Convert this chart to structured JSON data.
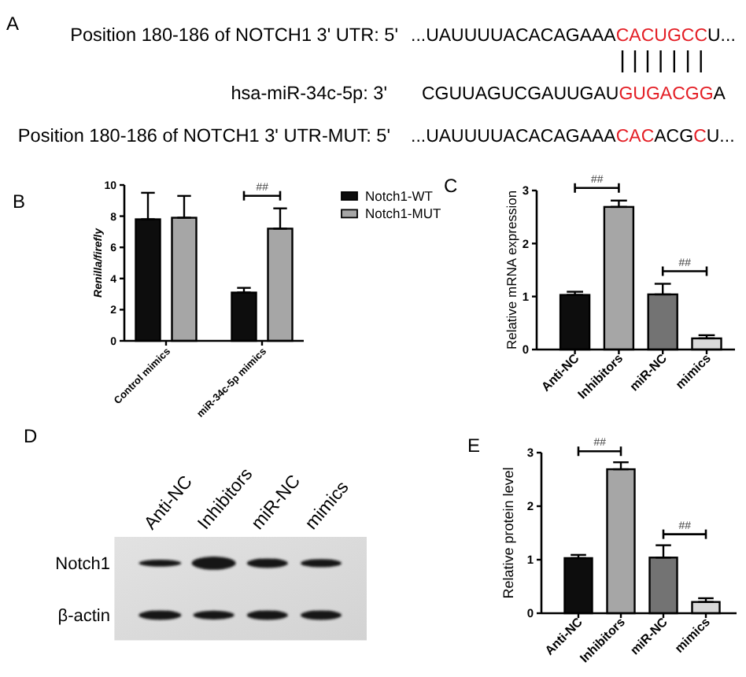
{
  "chart_data": [
    {
      "type": "other",
      "annotations": [
        "A"
      ],
      "y_categories": [
        "Position 180-186 of NOTCH1 3' UTR: 5'",
        "hsa-miR-34c-5p: 3'",
        "Position 180-186 of NOTCH1 3' UTR-MUT: 5'"
      ],
      "cell_labels": [
        [
          "...UAUUUUACACAGAAA",
          "CACUGCC",
          "U..."
        ],
        [
          "CGUUAGUCGAUUGAU",
          "GUGACGG",
          "A"
        ],
        [
          "...UAUUUUACACAGAAA",
          "CAC",
          "ACG",
          "C",
          "U..."
        ]
      ],
      "colors": [
        [
          "#000000",
          "#e41f26",
          "#000000"
        ],
        [
          "#000000",
          "#e41f26",
          "#000000"
        ],
        [
          "#000000",
          "#e41f26",
          "#000000",
          "#e41f26",
          "#000000"
        ]
      ]
    },
    {
      "type": "bar",
      "annotations": [
        "B",
        "##"
      ],
      "categories": [
        "Control mimics",
        "miR-34c-5p mimics"
      ],
      "series": [
        {
          "name": "Notch1-WT",
          "color": "#0d0d0d",
          "values": [
            7.8,
            3.1
          ],
          "errors": [
            [
              7.8,
              9.5
            ],
            [
              3.1,
              3.4
            ]
          ]
        },
        {
          "name": "Notch1-MUT",
          "color": "#a6a6a6",
          "values": [
            7.9,
            7.2
          ],
          "errors": [
            [
              7.9,
              9.3
            ],
            [
              7.2,
              8.5
            ]
          ]
        }
      ],
      "ylabel": "Renilla/firefly",
      "ylim": [
        0,
        10
      ],
      "yticks": [
        0,
        2,
        4,
        6,
        8,
        10
      ],
      "legend": "right"
    },
    {
      "type": "bar",
      "annotations": [
        "C",
        "##",
        "##"
      ],
      "categories": [
        "Anti-NC",
        "Inhibitors",
        "miR-NC",
        "mimics"
      ],
      "values": [
        1.03,
        2.69,
        1.04,
        0.21
      ],
      "colors": [
        "#0d0d0d",
        "#a6a6a6",
        "#737373",
        "#d9d9d9"
      ],
      "errors": [
        [
          1.03,
          1.09
        ],
        [
          2.69,
          2.81
        ],
        [
          1.04,
          1.24
        ],
        [
          0.21,
          0.27
        ]
      ],
      "ylabel": "Relative mRNA expression",
      "ylim": [
        0,
        3
      ],
      "yticks": [
        0,
        1,
        2,
        3
      ]
    },
    {
      "type": "other",
      "annotations": [
        "D"
      ],
      "categories": [
        "Anti-NC",
        "Inhibitors",
        "miR-NC",
        "mimics"
      ],
      "y_categories": [
        "Notch1",
        "β-actin"
      ]
    },
    {
      "type": "bar",
      "annotations": [
        "E",
        "##",
        "##"
      ],
      "categories": [
        "Anti-NC",
        "Inhibitors",
        "miR-NC",
        "mimics"
      ],
      "values": [
        1.03,
        2.69,
        1.04,
        0.21
      ],
      "colors": [
        "#0d0d0d",
        "#a6a6a6",
        "#737373",
        "#d9d9d9"
      ],
      "errors": [
        [
          1.03,
          1.09
        ],
        [
          2.69,
          2.82
        ],
        [
          1.04,
          1.27
        ],
        [
          0.21,
          0.28
        ]
      ],
      "ylabel": "Relative protein level",
      "ylim": [
        0,
        3
      ],
      "yticks": [
        0,
        1,
        2,
        3
      ]
    }
  ]
}
